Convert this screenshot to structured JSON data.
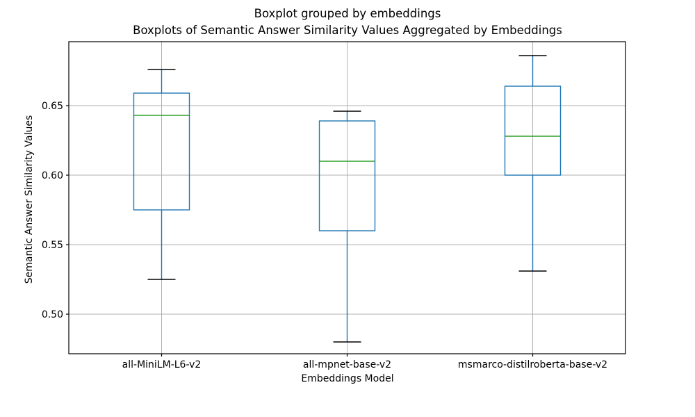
{
  "chart": {
    "suptitle": "Boxplot grouped by embeddings",
    "title": "Boxplots of Semantic Answer Similarity Values Aggregated by Embeddings"
  },
  "chart_data": {
    "type": "boxplot",
    "suptitle": "Boxplot grouped by embeddings",
    "title": "Boxplots of Semantic Answer Similarity Values Aggregated by Embeddings",
    "xlabel": "Embeddings Model",
    "ylabel": "Semantic Answer Similarity Values",
    "categories": [
      "all-MiniLM-L6-v2",
      "all-mpnet-base-v2",
      "msmarco-distilroberta-base-v2"
    ],
    "series": [
      {
        "name": "all-MiniLM-L6-v2",
        "whisker_low": 0.525,
        "q1": 0.575,
        "median": 0.643,
        "q3": 0.659,
        "whisker_high": 0.676
      },
      {
        "name": "all-mpnet-base-v2",
        "whisker_low": 0.48,
        "q1": 0.56,
        "median": 0.61,
        "q3": 0.639,
        "whisker_high": 0.646
      },
      {
        "name": "msmarco-distilroberta-base-v2",
        "whisker_low": 0.531,
        "q1": 0.6,
        "median": 0.628,
        "q3": 0.664,
        "whisker_high": 0.686
      }
    ],
    "ylim": [
      0.4715,
      0.696
    ],
    "yticks": [
      0.5,
      0.55,
      0.6,
      0.65
    ],
    "ytick_labels": [
      "0.50",
      "0.55",
      "0.60",
      "0.65"
    ],
    "grid": true,
    "legend": "none",
    "colors": {
      "box": "#1f77b4",
      "whisker": "#1f77b4",
      "median": "#2ca02c",
      "cap": "#000000",
      "grid": "#b0b0b0",
      "spine": "#000000",
      "text": "#000000",
      "background": "#ffffff"
    }
  }
}
